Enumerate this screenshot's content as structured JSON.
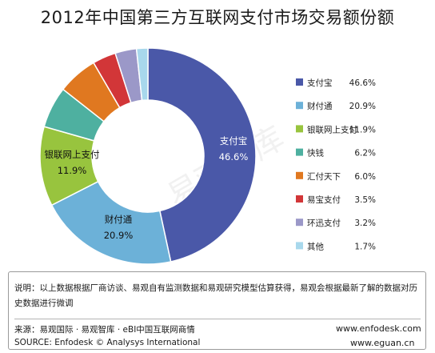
{
  "chart_data": {
    "type": "pie",
    "title": "2012年中国第三方互联网支付市场交易额份额",
    "categories": [
      "支付宝",
      "财付通",
      "银联网上支付",
      "快钱",
      "汇付天下",
      "易宝支付",
      "环迅支付",
      "其他"
    ],
    "values": [
      46.6,
      20.9,
      11.9,
      6.2,
      6.0,
      3.5,
      3.2,
      1.7
    ],
    "value_labels": [
      "46.6%",
      "20.9%",
      "11.9%",
      "6.2%",
      "6.0%",
      "3.5%",
      "3.2%",
      "1.7%"
    ],
    "colors": [
      "#4a58a8",
      "#6cb1d8",
      "#98c43e",
      "#4eb0a0",
      "#e07820",
      "#d23638",
      "#9b98c8",
      "#a8d8ec"
    ],
    "legend_position": "right",
    "donut": true
  },
  "watermark": "易观智库",
  "note": "说明：以上数据根据厂商访谈、易观自有监测数据和易观研究模型估算获得，易观会根据最新了解的数据对历史数据进行微调",
  "source": {
    "cn": "来源：易观国际 · 易观智库 · eBI中国互联网商情",
    "en": "SOURCE: Enfodesk © Analysys International"
  },
  "urls": {
    "top": "www.enfodesk.com",
    "bottom": "www.eguan.cn"
  }
}
